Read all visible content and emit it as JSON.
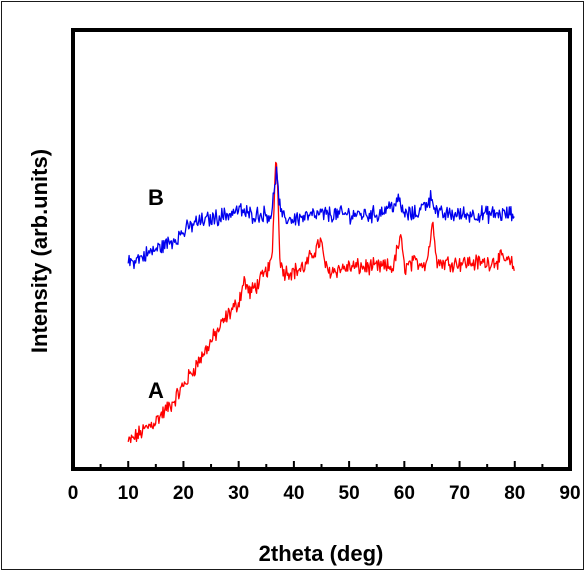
{
  "chart_data": {
    "type": "line",
    "title": "",
    "xlabel": "2theta (deg)",
    "ylabel": "Intensity (arb.units)",
    "xlim": [
      0,
      90
    ],
    "x_ticks": [
      "0",
      "10",
      "20",
      "30",
      "40",
      "50",
      "60",
      "70",
      "80",
      "90"
    ],
    "y_ticks_shown": false,
    "grid": false,
    "legend": "none",
    "series": [
      {
        "name": "A",
        "color": "#ff0000",
        "x": [
          10,
          12,
          15,
          18,
          20,
          22,
          25,
          28,
          30,
          31,
          32,
          34,
          35,
          36,
          36.8,
          37.5,
          38,
          40,
          42,
          44.8,
          46,
          50,
          55,
          58,
          59.3,
          60,
          62,
          64,
          65.2,
          66,
          70,
          75,
          78,
          80
        ],
        "y": [
          0.06,
          0.08,
          0.11,
          0.15,
          0.19,
          0.23,
          0.29,
          0.35,
          0.38,
          0.43,
          0.4,
          0.43,
          0.45,
          0.47,
          0.73,
          0.48,
          0.45,
          0.45,
          0.46,
          0.52,
          0.45,
          0.46,
          0.46,
          0.46,
          0.53,
          0.46,
          0.47,
          0.47,
          0.56,
          0.47,
          0.47,
          0.47,
          0.48,
          0.46
        ],
        "label": "A"
      },
      {
        "name": "B",
        "color": "#0000ee",
        "x": [
          10,
          12,
          15,
          18,
          20,
          22,
          25,
          28,
          30,
          32,
          34,
          36,
          36.8,
          37.5,
          38,
          40,
          45,
          50,
          55,
          59,
          60,
          62,
          65,
          66,
          70,
          75,
          80
        ],
        "y": [
          0.47,
          0.48,
          0.5,
          0.52,
          0.54,
          0.56,
          0.57,
          0.58,
          0.59,
          0.58,
          0.58,
          0.58,
          0.68,
          0.59,
          0.57,
          0.57,
          0.58,
          0.58,
          0.58,
          0.61,
          0.58,
          0.58,
          0.62,
          0.58,
          0.58,
          0.58,
          0.58
        ],
        "label": "B"
      }
    ]
  }
}
